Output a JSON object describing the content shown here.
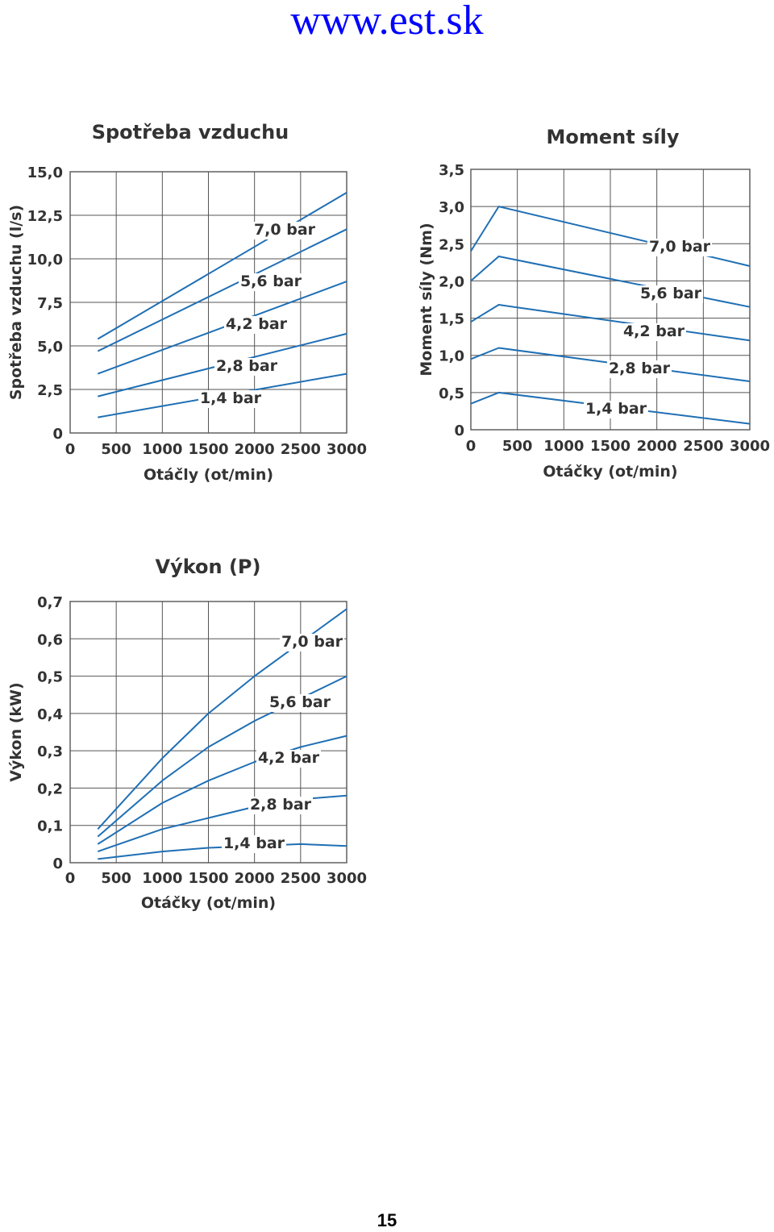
{
  "page": {
    "url": "www.est.sk",
    "page_number": "15",
    "colors": {
      "url": "#0000ff",
      "curves": "#1f6fb4",
      "grid": "#555555"
    }
  },
  "chart_data": [
    {
      "id": "air",
      "type": "line",
      "title": "Spotřeba vzduchu",
      "xlabel": "Otáčly (ot/min)",
      "ylabel": "Spotřeba vzduchu (l/s)",
      "xlim": [
        0,
        3000
      ],
      "ylim": [
        0,
        15
      ],
      "xticks": [
        0,
        500,
        1000,
        1500,
        2000,
        2500,
        3000
      ],
      "yticks": [
        0,
        2.5,
        5,
        7.5,
        10,
        12.5,
        15
      ],
      "ytick_labels": [
        "0",
        "2,5",
        "5,0",
        "7,5",
        "10,0",
        "12,5",
        "15,0"
      ],
      "grid": true,
      "series": [
        {
          "name": "7,0 bar",
          "x": [
            300,
            3000
          ],
          "y": [
            5.4,
            13.8
          ]
        },
        {
          "name": "5,6 bar",
          "x": [
            300,
            3000
          ],
          "y": [
            4.7,
            11.7
          ]
        },
        {
          "name": "4,2 bar",
          "x": [
            300,
            3000
          ],
          "y": [
            3.4,
            8.7
          ]
        },
        {
          "name": "2,8 bar",
          "x": [
            300,
            3000
          ],
          "y": [
            2.1,
            5.7
          ]
        },
        {
          "name": "1,4 bar",
          "x": [
            300,
            3000
          ],
          "y": [
            0.9,
            3.4
          ]
        }
      ]
    },
    {
      "id": "torque",
      "type": "line",
      "title": "Moment síly",
      "xlabel": "Otáčky (ot/min)",
      "ylabel": "Moment síly (Nm)",
      "xlim": [
        0,
        3000
      ],
      "ylim": [
        0,
        3.5
      ],
      "xticks": [
        0,
        500,
        1000,
        1500,
        2000,
        2500,
        3000
      ],
      "yticks": [
        0,
        0.5,
        1,
        1.5,
        2,
        2.5,
        3,
        3.5
      ],
      "ytick_labels": [
        "0",
        "0,5",
        "1,0",
        "1,5",
        "2,0",
        "2,5",
        "3,0",
        "3,5"
      ],
      "grid": true,
      "series": [
        {
          "name": "7,0 bar",
          "x": [
            0,
            300,
            3000
          ],
          "y": [
            2.4,
            3.0,
            2.2
          ]
        },
        {
          "name": "5,6 bar",
          "x": [
            0,
            300,
            3000
          ],
          "y": [
            2.0,
            2.33,
            1.65
          ]
        },
        {
          "name": "4,2 bar",
          "x": [
            0,
            300,
            3000
          ],
          "y": [
            1.45,
            1.68,
            1.2
          ]
        },
        {
          "name": "2,8 bar",
          "x": [
            0,
            300,
            3000
          ],
          "y": [
            0.95,
            1.1,
            0.65
          ]
        },
        {
          "name": "1,4 bar",
          "x": [
            0,
            300,
            3000
          ],
          "y": [
            0.35,
            0.5,
            0.08
          ]
        }
      ]
    },
    {
      "id": "power",
      "type": "line",
      "title": "Výkon (P)",
      "xlabel": "Otáčky (ot/min)",
      "ylabel": "Výkon (kW)",
      "xlim": [
        0,
        3000
      ],
      "ylim": [
        0,
        0.7
      ],
      "xticks": [
        0,
        500,
        1000,
        1500,
        2000,
        2500,
        3000
      ],
      "yticks": [
        0,
        0.1,
        0.2,
        0.3,
        0.4,
        0.5,
        0.6,
        0.7
      ],
      "ytick_labels": [
        "0",
        "0,1",
        "0,2",
        "0,3",
        "0,4",
        "0,5",
        "0,6",
        "0,7"
      ],
      "grid": true,
      "series": [
        {
          "name": "7,0 bar",
          "x": [
            300,
            1000,
            1500,
            2000,
            2500,
            3000
          ],
          "y": [
            0.09,
            0.28,
            0.4,
            0.5,
            0.59,
            0.68
          ]
        },
        {
          "name": "5,6 bar",
          "x": [
            300,
            1000,
            1500,
            2000,
            2500,
            3000
          ],
          "y": [
            0.07,
            0.22,
            0.31,
            0.38,
            0.44,
            0.5
          ]
        },
        {
          "name": "4,2 bar",
          "x": [
            300,
            1000,
            1500,
            2000,
            2500,
            3000
          ],
          "y": [
            0.05,
            0.16,
            0.22,
            0.27,
            0.31,
            0.34
          ]
        },
        {
          "name": "2,8 bar",
          "x": [
            300,
            1000,
            1500,
            2000,
            2500,
            3000
          ],
          "y": [
            0.03,
            0.09,
            0.12,
            0.15,
            0.17,
            0.18
          ]
        },
        {
          "name": "1,4 bar",
          "x": [
            300,
            1000,
            1500,
            2000,
            2500,
            3000
          ],
          "y": [
            0.01,
            0.03,
            0.04,
            0.045,
            0.05,
            0.045
          ]
        }
      ]
    }
  ]
}
